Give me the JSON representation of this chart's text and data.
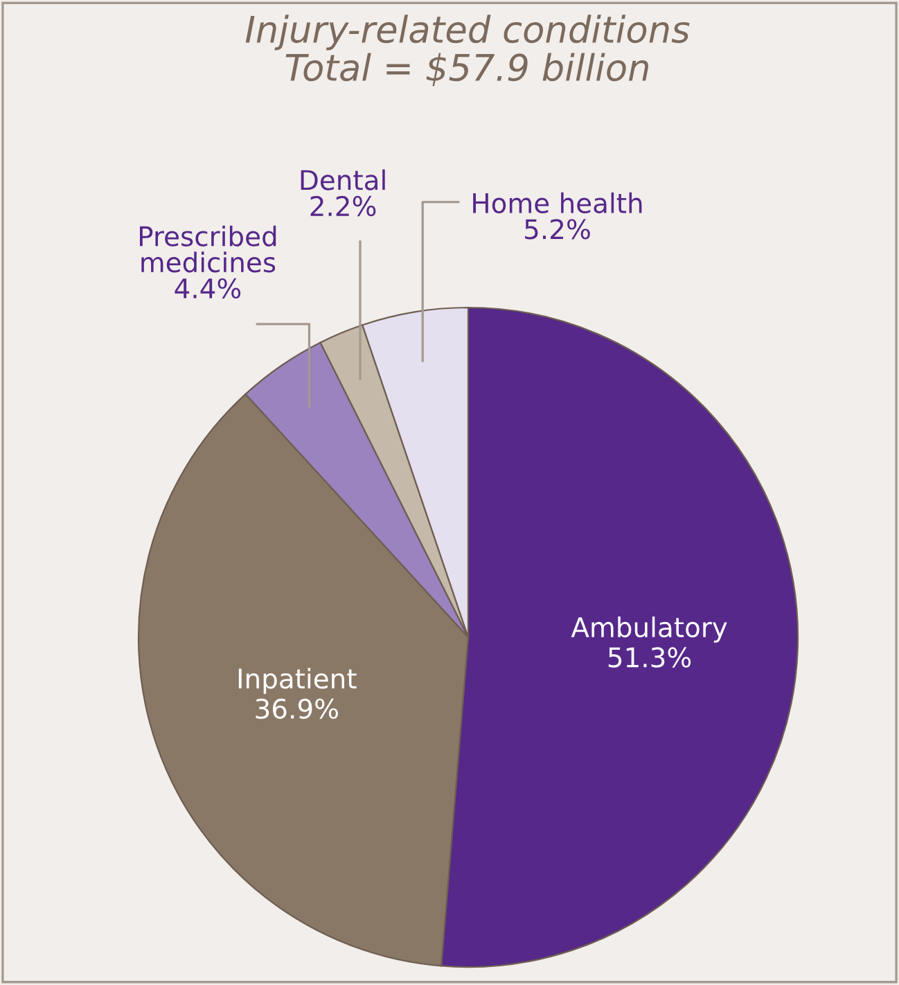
{
  "chart_data": {
    "type": "pie",
    "title": "Injury-related conditions\nTotal = $57.9 billion",
    "categories": [
      "Ambulatory",
      "Inpatient",
      "Prescribed\nmedicines",
      "Dental",
      "Home health"
    ],
    "values": [
      51.3,
      36.9,
      4.4,
      2.2,
      5.2
    ],
    "value_labels": [
      "51.3%",
      "36.9%",
      "4.4%",
      "2.2%",
      "5.2%"
    ],
    "colors": [
      "#55288a",
      "#8a7866",
      "#9a83bf",
      "#c5b9a9",
      "#e4e0f0"
    ],
    "legend": false
  }
}
